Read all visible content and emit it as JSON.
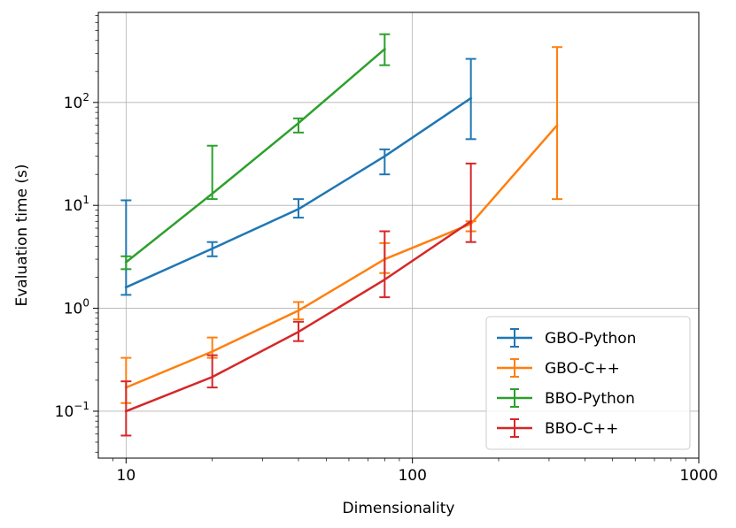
{
  "chart_data": {
    "type": "line",
    "title": "",
    "xlabel": "Dimensionality",
    "ylabel": "Evaluation time (s)",
    "xscale": "log",
    "yscale": "log",
    "xlim": [
      8,
      1000
    ],
    "ylim": [
      0.035,
      750
    ],
    "grid": true,
    "legend_position": "lower-right",
    "x_ticks": [
      {
        "value": 10,
        "label": "10"
      },
      {
        "value": 100,
        "label": "100"
      },
      {
        "value": 1000,
        "label": "1000"
      }
    ],
    "y_ticks": [
      {
        "value": 0.1,
        "base": "10",
        "exp": "−1"
      },
      {
        "value": 1,
        "base": "10",
        "exp": "0"
      },
      {
        "value": 10,
        "base": "10",
        "exp": "1"
      },
      {
        "value": 100,
        "base": "10",
        "exp": "2"
      }
    ],
    "series": [
      {
        "name": "GBO-Python",
        "color": "#1f77b4",
        "x": [
          10,
          20,
          40,
          80,
          160
        ],
        "y": [
          1.6,
          3.8,
          9.2,
          30,
          110
        ],
        "err_low": [
          1.35,
          3.2,
          7.6,
          20,
          44
        ],
        "err_high": [
          11.2,
          4.4,
          11.5,
          35,
          265
        ]
      },
      {
        "name": "GBO-C++",
        "color": "#ff7f0e",
        "x": [
          10,
          20,
          40,
          80,
          160,
          320
        ],
        "y": [
          0.17,
          0.38,
          0.95,
          3.0,
          6.6,
          60
        ],
        "err_low": [
          0.12,
          0.33,
          0.78,
          2.2,
          5.6,
          11.5
        ],
        "err_high": [
          0.33,
          0.52,
          1.15,
          4.3,
          7.0,
          345
        ]
      },
      {
        "name": "BBO-Python",
        "color": "#2ca02c",
        "x": [
          10,
          20,
          40,
          80
        ],
        "y": [
          2.8,
          13,
          63,
          330
        ],
        "err_low": [
          2.4,
          11.5,
          51,
          230
        ],
        "err_high": [
          3.2,
          38,
          70,
          460
        ]
      },
      {
        "name": "BBO-C++",
        "color": "#d62728",
        "x": [
          10,
          20,
          40,
          80,
          160
        ],
        "y": [
          0.1,
          0.215,
          0.59,
          1.9,
          7.0
        ],
        "err_low": [
          0.058,
          0.17,
          0.48,
          1.28,
          4.4
        ],
        "err_high": [
          0.195,
          0.35,
          0.74,
          5.6,
          25.5
        ]
      }
    ]
  }
}
